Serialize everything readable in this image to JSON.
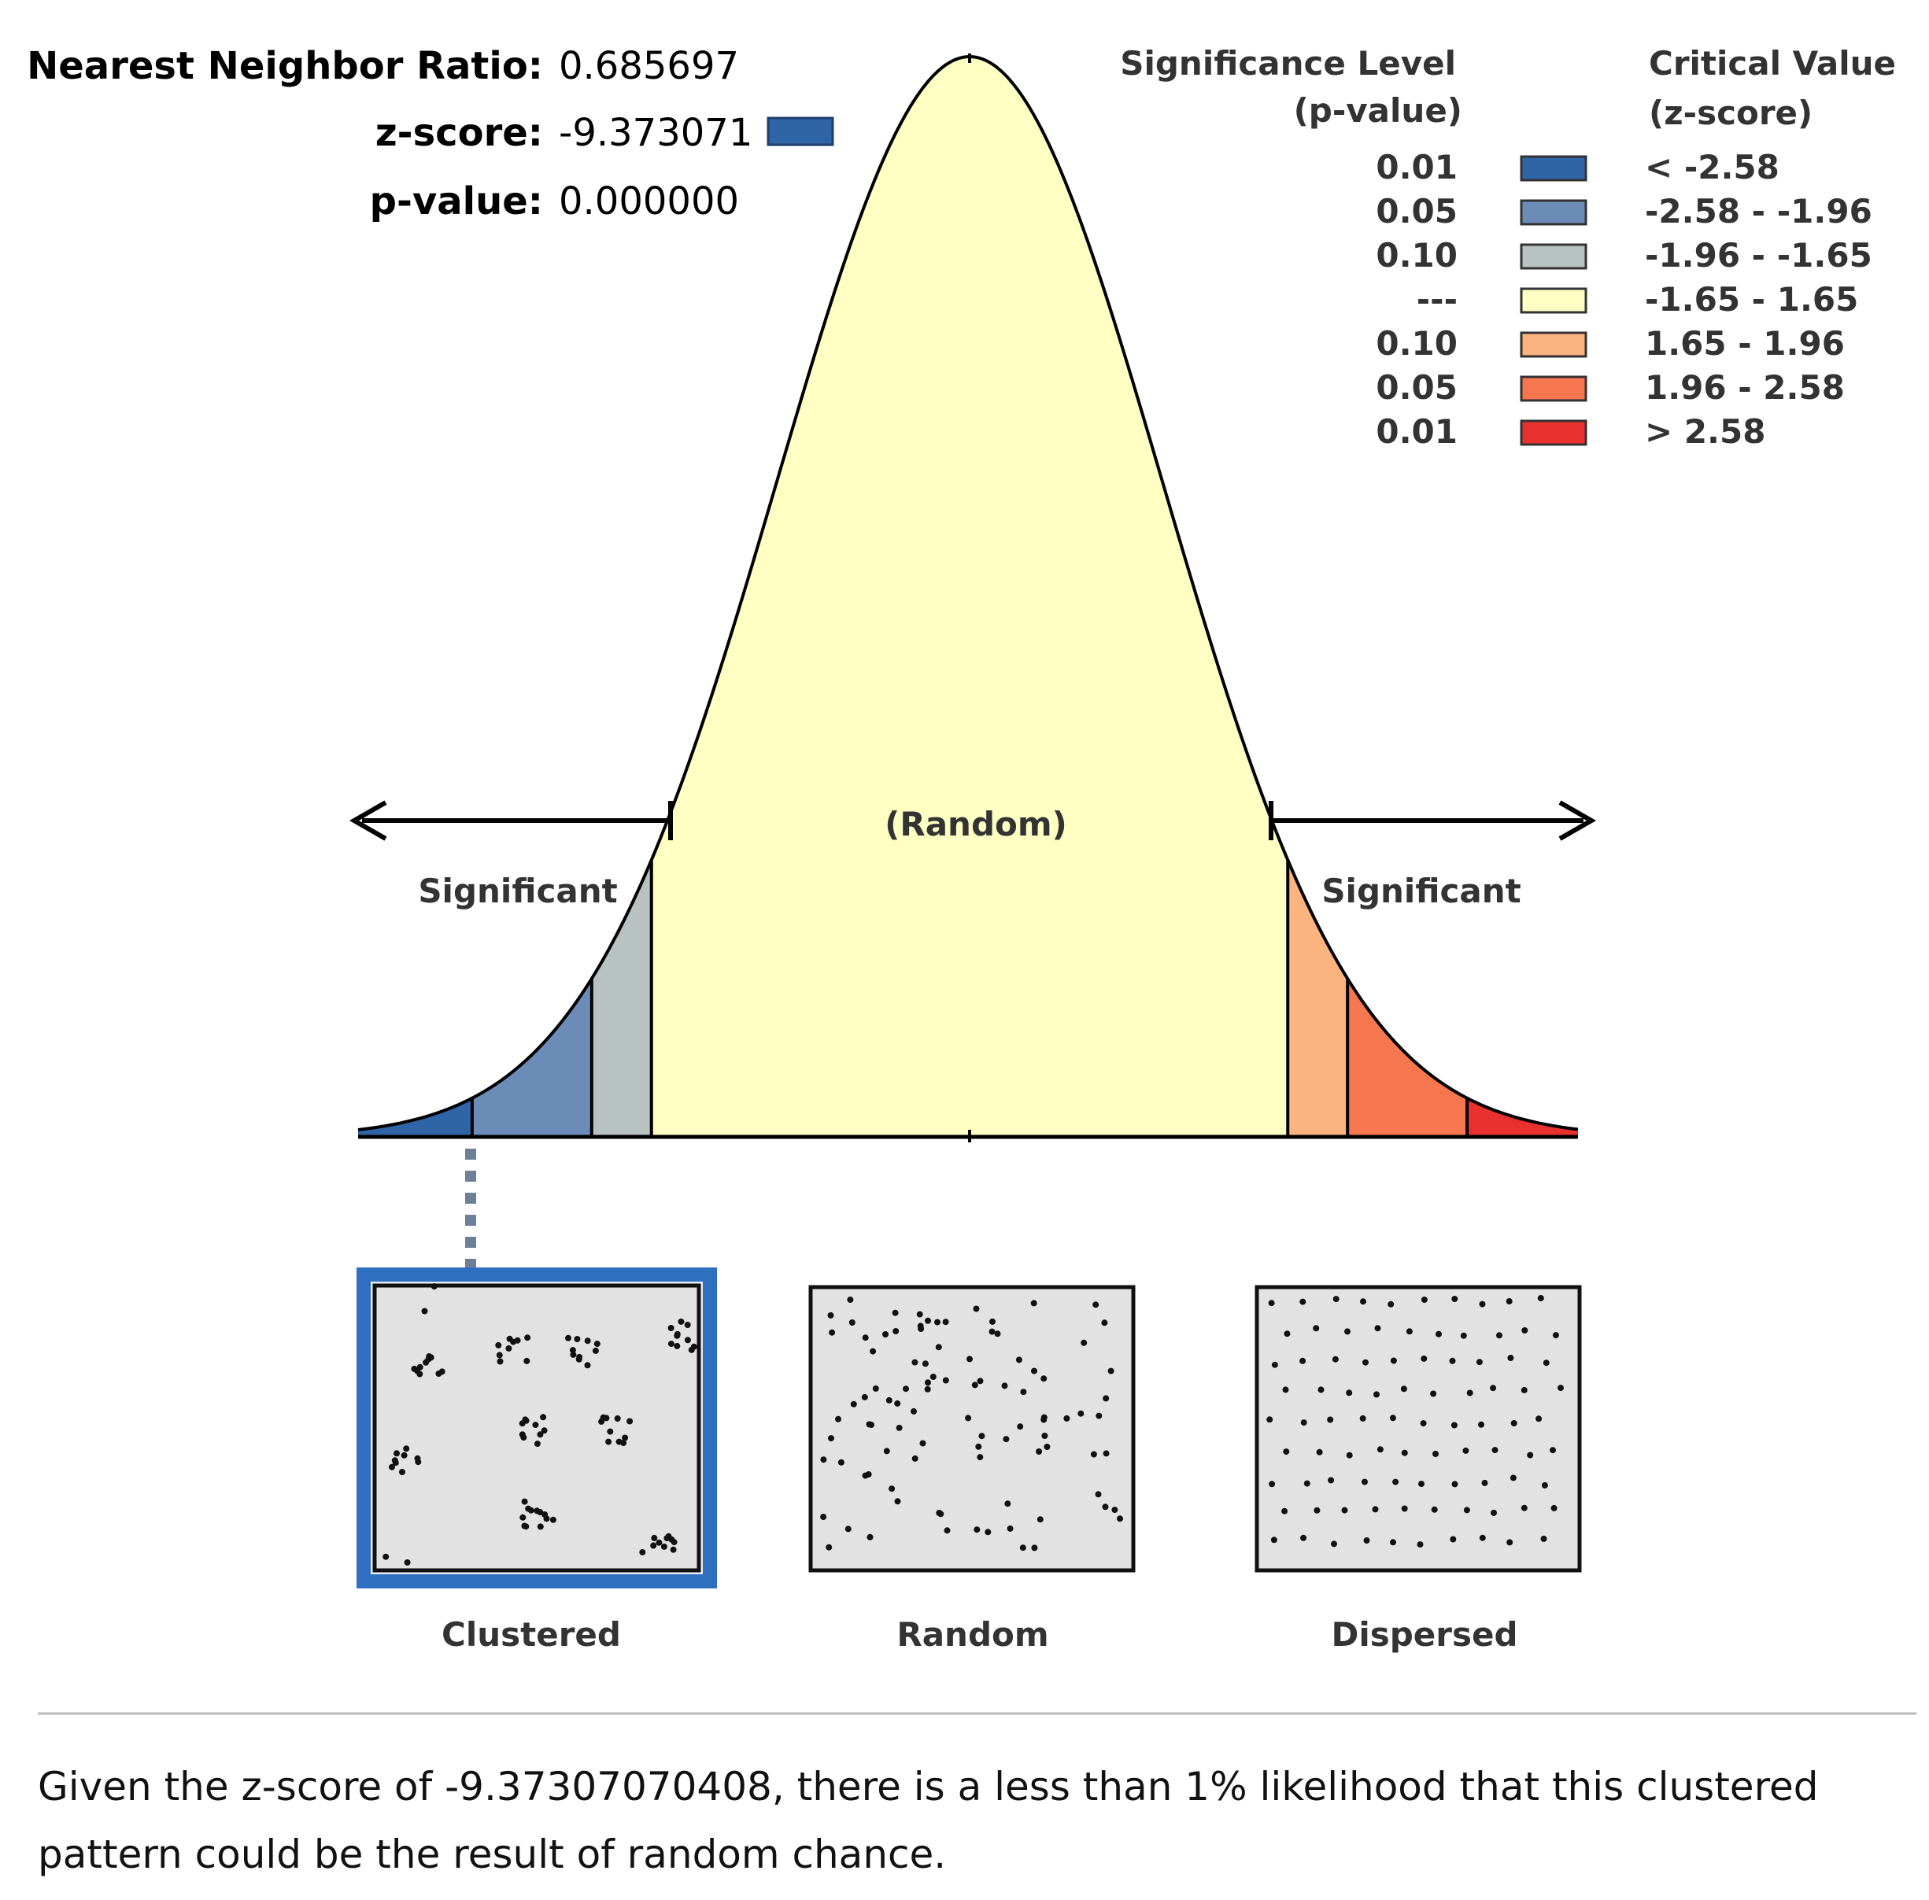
{
  "stats": {
    "nn_ratio_label": "Nearest Neighbor Ratio:",
    "nn_ratio_value": "0.685697",
    "zscore_label": "z-score:",
    "zscore_value": "-9.373071",
    "pvalue_label": "p-value:",
    "pvalue_value": "0.000000",
    "zscore_swatch_color": "#2f64a6"
  },
  "legend": {
    "significance_header_line1": "Significance Level",
    "significance_header_line2": "(p-value)",
    "critical_header_line1": "Critical Value",
    "critical_header_line2": "(z-score)",
    "rows": [
      {
        "p": "0.01",
        "color": "#2f64a6",
        "range": "< -2.58"
      },
      {
        "p": "0.05",
        "color": "#6b8cb7",
        "range": "-2.58 - -1.96"
      },
      {
        "p": "0.10",
        "color": "#b8c2c0",
        "range": "-1.96 - -1.65"
      },
      {
        "p": "---",
        "color": "#ffffc3",
        "range": "-1.65 - 1.65"
      },
      {
        "p": "0.10",
        "color": "#fbb47f",
        "range": "1.65 - 1.96"
      },
      {
        "p": "0.05",
        "color": "#f6764f",
        "range": "1.96 - 2.58"
      },
      {
        "p": "0.01",
        "color": "#e8302e",
        "range": "> 2.58"
      }
    ]
  },
  "curve_labels": {
    "center": "(Random)",
    "left": "Significant",
    "right": "Significant"
  },
  "patterns": {
    "clustered": "Clustered",
    "random": "Random",
    "dispersed": "Dispersed",
    "selected": "clustered",
    "selected_border_color": "#2f6fc0"
  },
  "caption": "Given the z-score of -9.37307070408, there is a less than 1% likelihood that this clustered pattern could be the result of random chance."
}
